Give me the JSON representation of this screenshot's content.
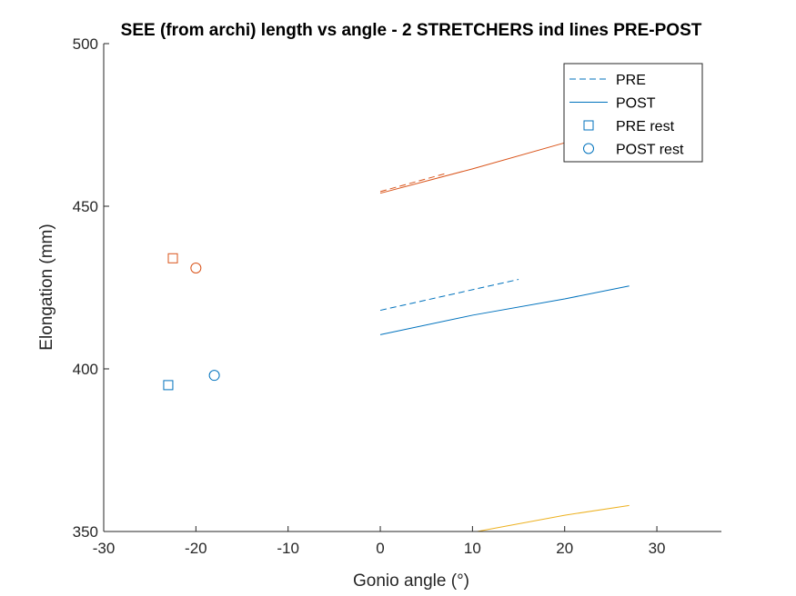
{
  "chart_data": {
    "type": "line",
    "title": "SEE (from archi) length vs angle - 2 STRETCHERS ind lines PRE-POST",
    "xlabel": "Gonio angle (°)",
    "ylabel": "Elongation (mm)",
    "xlim": [
      -30,
      37
    ],
    "ylim": [
      350,
      500
    ],
    "xticks": [
      "-30",
      "-20",
      "-10",
      "0",
      "10",
      "20",
      "30"
    ],
    "yticks": [
      "350",
      "400",
      "450",
      "500"
    ],
    "grid": false,
    "legend_position": "top-right",
    "legend": [
      {
        "label": "PRE",
        "marker": "dashed-line"
      },
      {
        "label": "POST",
        "marker": "solid-line"
      },
      {
        "label": "PRE rest",
        "marker": "square"
      },
      {
        "label": "POST rest",
        "marker": "circle"
      }
    ],
    "series": [
      {
        "group": "orange",
        "color": "#D95319",
        "kind": "PRE",
        "style": "dashed",
        "x": [
          0,
          7
        ],
        "y": [
          454.5,
          460
        ]
      },
      {
        "group": "orange",
        "color": "#D95319",
        "kind": "POST",
        "style": "solid",
        "x": [
          0,
          10,
          20,
          27
        ],
        "y": [
          454,
          461.5,
          469.5,
          475
        ]
      },
      {
        "group": "blue",
        "color": "#0072BD",
        "kind": "PRE",
        "style": "dashed",
        "x": [
          0,
          15
        ],
        "y": [
          418,
          427.5
        ]
      },
      {
        "group": "blue",
        "color": "#0072BD",
        "kind": "POST",
        "style": "solid",
        "x": [
          0,
          10,
          20,
          27
        ],
        "y": [
          410.5,
          416.5,
          421.5,
          425.5
        ]
      },
      {
        "group": "yellow",
        "color": "#EDB120",
        "kind": "POST",
        "style": "solid",
        "x": [
          10.5,
          20,
          27
        ],
        "y": [
          350,
          355,
          358
        ]
      }
    ],
    "rest_points": [
      {
        "color": "#D95319",
        "kind": "PRE rest",
        "marker": "square",
        "x": -22.5,
        "y": 434
      },
      {
        "color": "#D95319",
        "kind": "POST rest",
        "marker": "circle",
        "x": -20,
        "y": 431
      },
      {
        "color": "#0072BD",
        "kind": "PRE rest",
        "marker": "square",
        "x": -23,
        "y": 395
      },
      {
        "color": "#0072BD",
        "kind": "POST rest",
        "marker": "circle",
        "x": -18,
        "y": 398
      }
    ],
    "legend_color": "#0072BD"
  }
}
